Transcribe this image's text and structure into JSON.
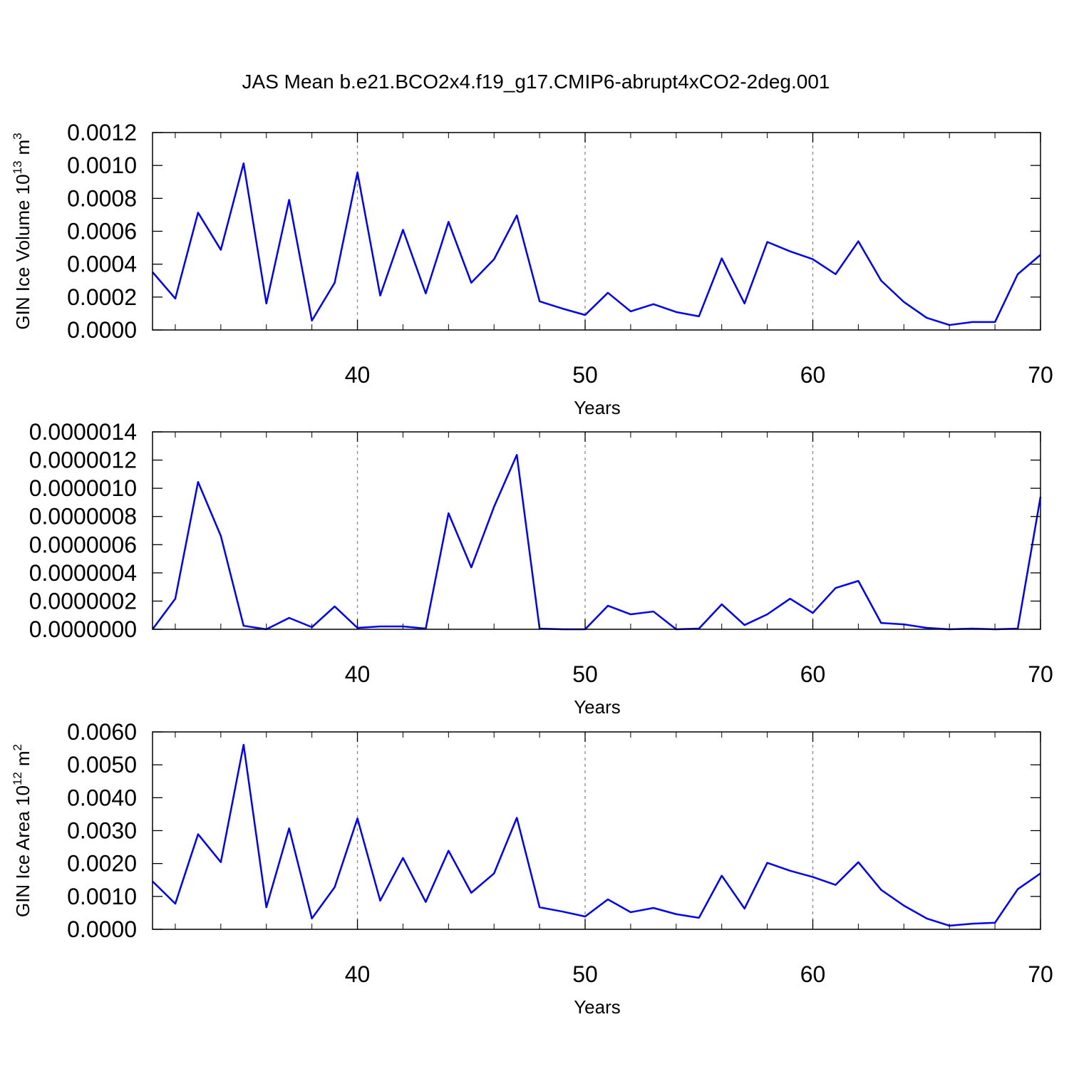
{
  "chart_data": [
    {
      "type": "line",
      "title": "JAS Mean b.e21.BCO2x4.f19_g17.CMIP6-abrupt4xCO2-2deg.001",
      "xlabel": "Years",
      "ylabel": [
        "GIN Ice Volume 10",
        "13",
        "m",
        "3"
      ],
      "x": [
        31,
        32,
        33,
        34,
        35,
        36,
        37,
        38,
        39,
        40,
        41,
        42,
        43,
        44,
        45,
        46,
        47,
        48,
        49,
        50,
        51,
        52,
        53,
        54,
        55,
        56,
        57,
        58,
        59,
        60,
        61,
        62,
        63,
        64,
        65,
        66,
        67,
        68,
        69,
        70
      ],
      "series": [
        {
          "color": "#0000ff",
          "values": [
            0.000352,
            0.000191,
            0.000713,
            0.000487,
            0.001013,
            0.000161,
            0.000791,
            5.7e-05,
            0.000287,
            0.000957,
            0.000209,
            0.000609,
            0.000222,
            0.000657,
            0.000287,
            0.00043,
            0.000696,
            0.000174,
            0.00013,
            9.1e-05,
            0.000226,
            0.000113,
            0.000157,
            0.000109,
            8.3e-05,
            0.000435,
            0.000161,
            0.000535,
            0.000478,
            0.00043,
            0.000339,
            0.000539,
            0.0003,
            0.00017,
            7.4e-05,
            3e-05,
            4.8e-05,
            4.8e-05,
            0.000339,
            0.000457
          ]
        }
      ],
      "xlim": [
        31,
        70
      ],
      "xticks": [
        40,
        50,
        60,
        70
      ],
      "xminorticks": [
        32,
        34,
        36,
        38,
        42,
        44,
        46,
        48,
        52,
        54,
        56,
        58,
        62,
        64,
        66,
        68
      ],
      "ylim": [
        0,
        0.0012
      ],
      "yticks": [
        {
          "value": 0,
          "label": "0.0000"
        },
        {
          "value": 0.0002,
          "label": "0.0002"
        },
        {
          "value": 0.0004,
          "label": "0.0004"
        },
        {
          "value": 0.0006,
          "label": "0.0006"
        },
        {
          "value": 0.0008,
          "label": "0.0008"
        },
        {
          "value": 0.001,
          "label": "0.0010"
        },
        {
          "value": 0.0012,
          "label": "0.0012"
        }
      ],
      "grid": true
    },
    {
      "type": "line",
      "xlabel": "Years",
      "x": [
        31,
        32,
        33,
        34,
        35,
        36,
        37,
        38,
        39,
        40,
        41,
        42,
        43,
        44,
        45,
        46,
        47,
        48,
        49,
        50,
        51,
        52,
        53,
        54,
        55,
        56,
        57,
        58,
        59,
        60,
        61,
        62,
        63,
        64,
        65,
        66,
        67,
        68,
        69,
        70
      ],
      "series": [
        {
          "color": "#0000ff",
          "values": [
            0,
            2.17e-07,
            1.045e-06,
            6.62e-07,
            2.5e-08,
            0,
            8.1e-08,
            1.5e-08,
            1.62e-07,
            1e-08,
            2e-08,
            2e-08,
            5e-09,
            8.23e-07,
            4.39e-07,
            8.69e-07,
            1.237e-06,
            5e-09,
            0,
            0,
            1.67e-07,
            1.06e-07,
            1.26e-07,
            0,
            5e-09,
            1.77e-07,
            3e-08,
            1.06e-07,
            2.17e-07,
            1.16e-07,
            2.93e-07,
            3.43e-07,
            4.5e-08,
            3.5e-08,
            1e-08,
            0,
            5e-09,
            0,
            5e-09,
            9.39e-07
          ]
        }
      ],
      "xlim": [
        31,
        70
      ],
      "xticks": [
        40,
        50,
        60,
        70
      ],
      "xminorticks": [
        32,
        34,
        36,
        38,
        42,
        44,
        46,
        48,
        52,
        54,
        56,
        58,
        62,
        64,
        66,
        68
      ],
      "ylim": [
        0,
        1.4e-06
      ],
      "yticks": [
        {
          "value": 0,
          "label": "0.0000000"
        },
        {
          "value": 2e-07,
          "label": "0.0000002"
        },
        {
          "value": 4e-07,
          "label": "0.0000004"
        },
        {
          "value": 6e-07,
          "label": "0.0000006"
        },
        {
          "value": 8e-07,
          "label": "0.0000008"
        },
        {
          "value": 1e-06,
          "label": "0.0000010"
        },
        {
          "value": 1.2e-06,
          "label": "0.0000012"
        },
        {
          "value": 1.4e-06,
          "label": "0.0000014"
        }
      ],
      "grid": true
    },
    {
      "type": "line",
      "xlabel": "Years",
      "ylabel": [
        "GIN Ice Area 10",
        "12",
        "m",
        "2"
      ],
      "x": [
        31,
        32,
        33,
        34,
        35,
        36,
        37,
        38,
        39,
        40,
        41,
        42,
        43,
        44,
        45,
        46,
        47,
        48,
        49,
        50,
        51,
        52,
        53,
        54,
        55,
        56,
        57,
        58,
        59,
        60,
        61,
        62,
        63,
        64,
        65,
        66,
        67,
        68,
        69,
        70
      ],
      "series": [
        {
          "color": "#0000ff",
          "values": [
            0.00146,
            0.00078,
            0.00289,
            0.00204,
            0.00561,
            0.00067,
            0.00307,
            0.00033,
            0.00128,
            0.00337,
            0.00087,
            0.00217,
            0.00083,
            0.00239,
            0.00111,
            0.0017,
            0.00339,
            0.00067,
            0.00054,
            0.00039,
            0.00091,
            0.00052,
            0.00065,
            0.00046,
            0.00035,
            0.00163,
            0.00063,
            0.00202,
            0.00178,
            0.00159,
            0.00135,
            0.00204,
            0.0012,
            0.00072,
            0.00033,
            0.00011,
            0.00017,
            0.0002,
            0.00122,
            0.0017
          ]
        }
      ],
      "xlim": [
        31,
        70
      ],
      "xticks": [
        40,
        50,
        60,
        70
      ],
      "xminorticks": [
        32,
        34,
        36,
        38,
        42,
        44,
        46,
        48,
        52,
        54,
        56,
        58,
        62,
        64,
        66,
        68
      ],
      "ylim": [
        0,
        0.006
      ],
      "yticks": [
        {
          "value": 0,
          "label": "0.0000"
        },
        {
          "value": 0.001,
          "label": "0.0010"
        },
        {
          "value": 0.002,
          "label": "0.0020"
        },
        {
          "value": 0.003,
          "label": "0.0030"
        },
        {
          "value": 0.004,
          "label": "0.0040"
        },
        {
          "value": 0.005,
          "label": "0.0050"
        },
        {
          "value": 0.006,
          "label": "0.0060"
        }
      ],
      "grid": true
    }
  ]
}
